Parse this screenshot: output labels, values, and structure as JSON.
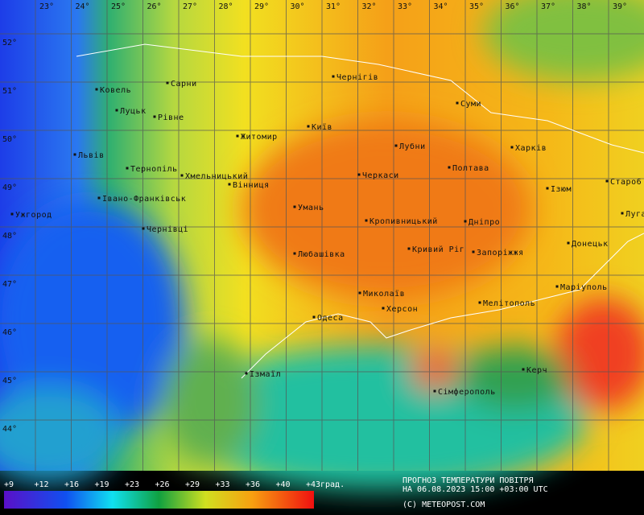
{
  "map": {
    "longitudes": [
      "23°",
      "24°",
      "25°",
      "26°",
      "27°",
      "28°",
      "29°",
      "30°",
      "31°",
      "32°",
      "33°",
      "34°",
      "35°",
      "36°",
      "37°",
      "38°",
      "39°"
    ],
    "latitudes": [
      "52°",
      "51°",
      "50°",
      "49°",
      "48°",
      "47°",
      "46°",
      "45°",
      "44°"
    ],
    "cities": [
      "Ковель",
      "Сарни",
      "Чернігів",
      "Луцьк",
      "Рівне",
      "Суми",
      "Київ",
      "Житомир",
      "Лубни",
      "Харків",
      "Львів",
      "Тернопіль",
      "Хмельницький",
      "Полтава",
      "Черкаси",
      "Вінниця",
      "Ізюм",
      "Старо6",
      "Івано-Франківськ",
      "Умань",
      "Луганськ",
      "Ужгород",
      "Кропивницький",
      "Дніпро",
      "Чернівці",
      "Донецьк",
      "Кривий Ріг",
      "Запоріжжя",
      "Любашівка",
      "Маріуполь",
      "Миколаїв",
      "Мелітополь",
      "Херсон",
      "Одеса",
      "Ізмаїл",
      "Сімферополь",
      "Керч"
    ]
  },
  "legend": {
    "ticks": [
      "+9",
      "+12",
      "+16",
      "+19",
      "+23",
      "+26",
      "+29",
      "+33",
      "+36",
      "+40",
      "+43"
    ],
    "unit": "град."
  },
  "caption": {
    "line1": "ПРОГНОЗ ТЕМПЕРАТУРИ ПОВІТРЯ",
    "line2": "НА 06.08.2023 15:00 +03:00 UTC",
    "credit": "(C) METEOPOST.COM"
  }
}
